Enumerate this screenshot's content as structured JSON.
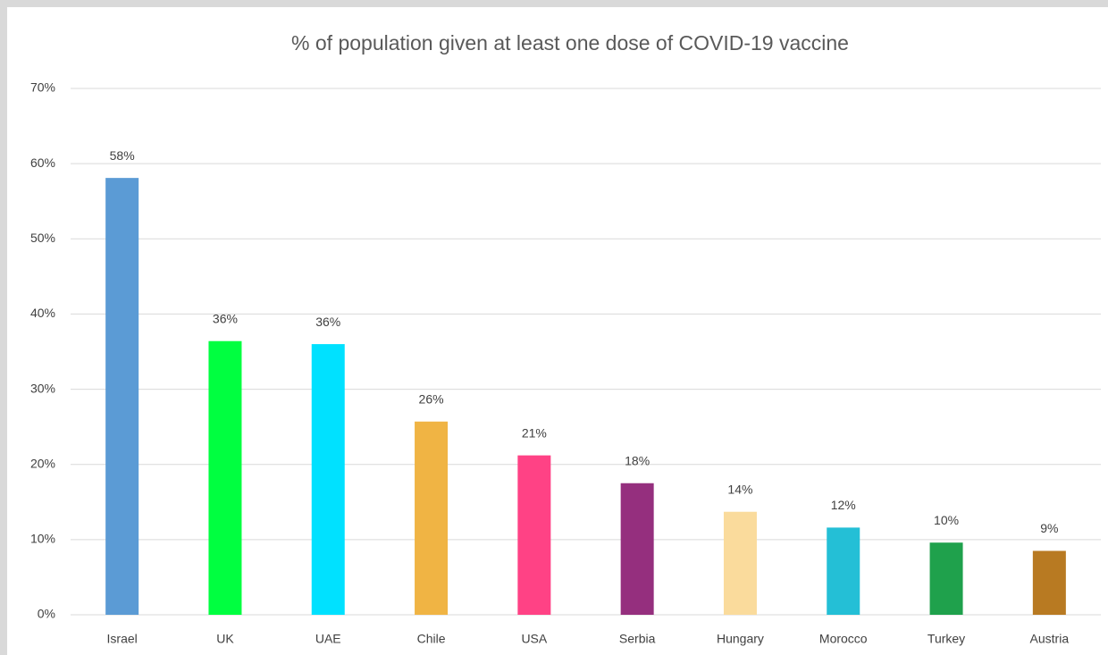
{
  "chart_data": {
    "type": "bar",
    "title": "% of population given at least one dose of COVID-19 vaccine",
    "categories": [
      "Israel",
      "UK",
      "UAE",
      "Chile",
      "USA",
      "Serbia",
      "Hungary",
      "Morocco",
      "Turkey",
      "Austria"
    ],
    "values": [
      58.1,
      36.4,
      36.0,
      25.7,
      21.2,
      17.5,
      13.7,
      11.6,
      9.6,
      8.5
    ],
    "value_labels": [
      "58%",
      "36%",
      "36%",
      "26%",
      "21%",
      "18%",
      "14%",
      "12%",
      "10%",
      "9%"
    ],
    "colors": [
      "#5b9bd5",
      "#00ff40",
      "#00e1ff",
      "#f0b444",
      "#ff4285",
      "#952f7e",
      "#fadb9c",
      "#24bfd6",
      "#1fa14c",
      "#b87a22"
    ],
    "ylim": [
      0,
      70
    ],
    "yticks": [
      {
        "value": 0,
        "label": "0%"
      },
      {
        "value": 10,
        "label": "10%"
      },
      {
        "value": 20,
        "label": "20%"
      },
      {
        "value": 30,
        "label": "30%"
      },
      {
        "value": 40,
        "label": "40%"
      },
      {
        "value": 50,
        "label": "50%"
      },
      {
        "value": 60,
        "label": "60%"
      },
      {
        "value": 70,
        "label": "70%"
      }
    ],
    "grid": true
  }
}
